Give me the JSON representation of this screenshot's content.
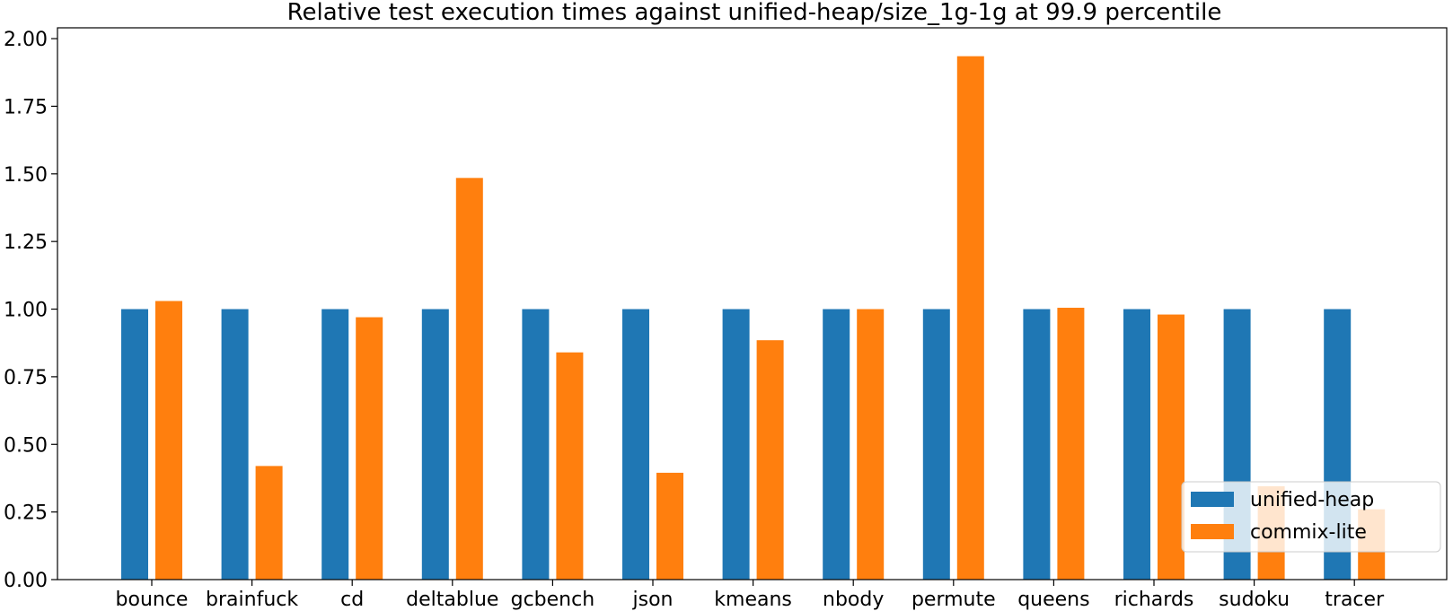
{
  "chart_data": {
    "type": "bar",
    "title": "Relative test execution times against unified-heap/size_1g-1g at 99.9 percentile",
    "xlabel": "",
    "ylabel": "",
    "ylim": [
      0,
      2.04
    ],
    "yticks": [
      "0.00",
      "0.25",
      "0.50",
      "0.75",
      "1.00",
      "1.25",
      "1.50",
      "1.75",
      "2.00"
    ],
    "categories": [
      "bounce",
      "brainfuck",
      "cd",
      "deltablue",
      "gcbench",
      "json",
      "kmeans",
      "nbody",
      "permute",
      "queens",
      "richards",
      "sudoku",
      "tracer"
    ],
    "series": [
      {
        "name": "unified-heap",
        "color": "#1f77b4",
        "values": [
          1.0,
          1.0,
          1.0,
          1.0,
          1.0,
          1.0,
          1.0,
          1.0,
          1.0,
          1.0,
          1.0,
          1.0,
          1.0
        ]
      },
      {
        "name": "commix-lite",
        "color": "#ff7f0e",
        "values": [
          1.03,
          0.42,
          0.97,
          1.485,
          0.84,
          0.395,
          0.885,
          1.0,
          1.935,
          1.005,
          0.98,
          0.345,
          0.26
        ]
      }
    ],
    "grid": false,
    "legend": "lower-right"
  }
}
